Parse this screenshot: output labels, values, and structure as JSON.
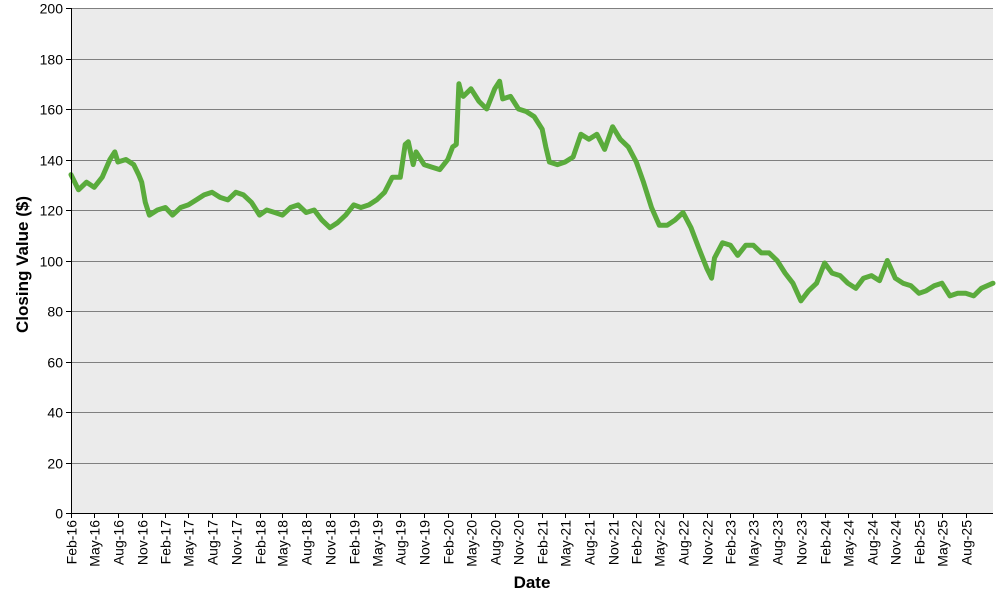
{
  "chart_data": {
    "type": "line",
    "title": "",
    "xlabel": "Date",
    "ylabel": "Closing Value ($)",
    "ylim": [
      0,
      200
    ],
    "yticks": [
      0,
      20,
      40,
      60,
      80,
      100,
      120,
      140,
      160,
      180,
      200
    ],
    "xlim": [
      "2016-02-01",
      "2025-11-15"
    ],
    "xtick_labels": [
      "Feb-16",
      "May-16",
      "Aug-16",
      "Nov-16",
      "Feb-17",
      "May-17",
      "Aug-17",
      "Nov-17",
      "Feb-18",
      "May-18",
      "Aug-18",
      "Nov-18",
      "Feb-19",
      "May-19",
      "Aug-19",
      "Nov-19",
      "Feb-20",
      "May-20",
      "Aug-20",
      "Nov-20",
      "Feb-21",
      "May-21",
      "Aug-21",
      "Nov-21",
      "Feb-22",
      "May-22",
      "Aug-22",
      "Nov-22",
      "Feb-23",
      "May-23",
      "Aug-23",
      "Nov-23",
      "Feb-24",
      "May-24",
      "Aug-24",
      "Nov-24",
      "Feb-25",
      "May-25",
      "Aug-25"
    ],
    "grid": true,
    "legend": "none",
    "colors": {
      "line": "#5aab3c",
      "plot_bg": "#ebebeb",
      "grid": "#7f7f7f"
    },
    "series": [
      {
        "x": [
          "2016-02-01",
          "2016-03-01",
          "2016-04-01",
          "2016-05-01",
          "2016-06-01",
          "2016-07-01",
          "2016-07-20",
          "2016-08-01",
          "2016-09-01",
          "2016-10-01",
          "2016-10-20",
          "2016-11-01",
          "2016-11-15",
          "2016-12-01",
          "2017-01-01",
          "2017-02-01",
          "2017-03-01",
          "2017-04-01",
          "2017-05-01",
          "2017-06-01",
          "2017-07-01",
          "2017-08-01",
          "2017-09-01",
          "2017-10-01",
          "2017-11-01",
          "2017-12-01",
          "2018-01-01",
          "2018-02-01",
          "2018-03-01",
          "2018-04-01",
          "2018-05-01",
          "2018-06-01",
          "2018-07-01",
          "2018-08-01",
          "2018-09-01",
          "2018-10-01",
          "2018-11-01",
          "2018-12-01",
          "2019-01-01",
          "2019-02-01",
          "2019-03-01",
          "2019-04-01",
          "2019-05-01",
          "2019-06-01",
          "2019-07-01",
          "2019-08-01",
          "2019-08-20",
          "2019-09-01",
          "2019-09-20",
          "2019-10-01",
          "2019-11-01",
          "2019-12-01",
          "2020-01-01",
          "2020-02-01",
          "2020-02-20",
          "2020-03-05",
          "2020-03-15",
          "2020-03-25",
          "2020-04-01",
          "2020-05-01",
          "2020-06-01",
          "2020-07-01",
          "2020-08-01",
          "2020-08-20",
          "2020-09-01",
          "2020-10-01",
          "2020-11-01",
          "2020-12-01",
          "2021-01-01",
          "2021-02-01",
          "2021-02-15",
          "2021-03-01",
          "2021-04-01",
          "2021-05-01",
          "2021-06-01",
          "2021-07-01",
          "2021-08-01",
          "2021-09-01",
          "2021-10-01",
          "2021-11-01",
          "2021-12-01",
          "2022-01-01",
          "2022-02-01",
          "2022-03-01",
          "2022-04-01",
          "2022-05-01",
          "2022-06-01",
          "2022-07-01",
          "2022-08-01",
          "2022-09-01",
          "2022-10-01",
          "2022-11-01",
          "2022-11-20",
          "2022-12-01",
          "2023-01-01",
          "2023-02-01",
          "2023-03-01",
          "2023-04-01",
          "2023-05-01",
          "2023-06-01",
          "2023-07-01",
          "2023-08-01",
          "2023-09-01",
          "2023-10-01",
          "2023-11-01",
          "2023-12-01",
          "2024-01-01",
          "2024-02-01",
          "2024-03-01",
          "2024-04-01",
          "2024-05-01",
          "2024-06-01",
          "2024-07-01",
          "2024-08-01",
          "2024-09-01",
          "2024-10-01",
          "2024-11-01",
          "2024-12-01",
          "2025-01-01",
          "2025-02-01",
          "2025-03-01",
          "2025-04-01",
          "2025-05-01",
          "2025-06-01",
          "2025-07-01",
          "2025-08-01",
          "2025-09-01",
          "2025-10-01",
          "2025-11-15"
        ],
        "y": [
          134,
          128,
          131,
          129,
          133,
          140,
          143,
          139,
          140,
          138,
          134,
          131,
          123,
          118,
          120,
          121,
          118,
          121,
          122,
          124,
          126,
          127,
          125,
          124,
          127,
          126,
          123,
          118,
          120,
          119,
          118,
          121,
          122,
          119,
          120,
          116,
          113,
          115,
          118,
          122,
          121,
          122,
          124,
          127,
          133,
          133,
          146,
          147,
          138,
          143,
          138,
          137,
          136,
          140,
          145,
          146,
          170,
          166,
          165,
          168,
          163,
          160,
          168,
          171,
          164,
          165,
          160,
          159,
          157,
          152,
          145,
          139,
          138,
          139,
          141,
          150,
          148,
          150,
          144,
          153,
          148,
          145,
          139,
          131,
          121,
          114,
          114,
          116,
          119,
          113,
          105,
          97,
          93,
          101,
          107,
          106,
          102,
          106,
          106,
          103,
          103,
          100,
          95,
          91,
          84,
          88,
          91,
          99,
          95,
          94,
          91,
          89,
          93,
          94,
          92,
          100,
          93,
          91,
          90,
          87,
          88,
          90,
          91,
          86,
          87,
          87,
          86,
          89,
          91
        ]
      }
    ]
  }
}
